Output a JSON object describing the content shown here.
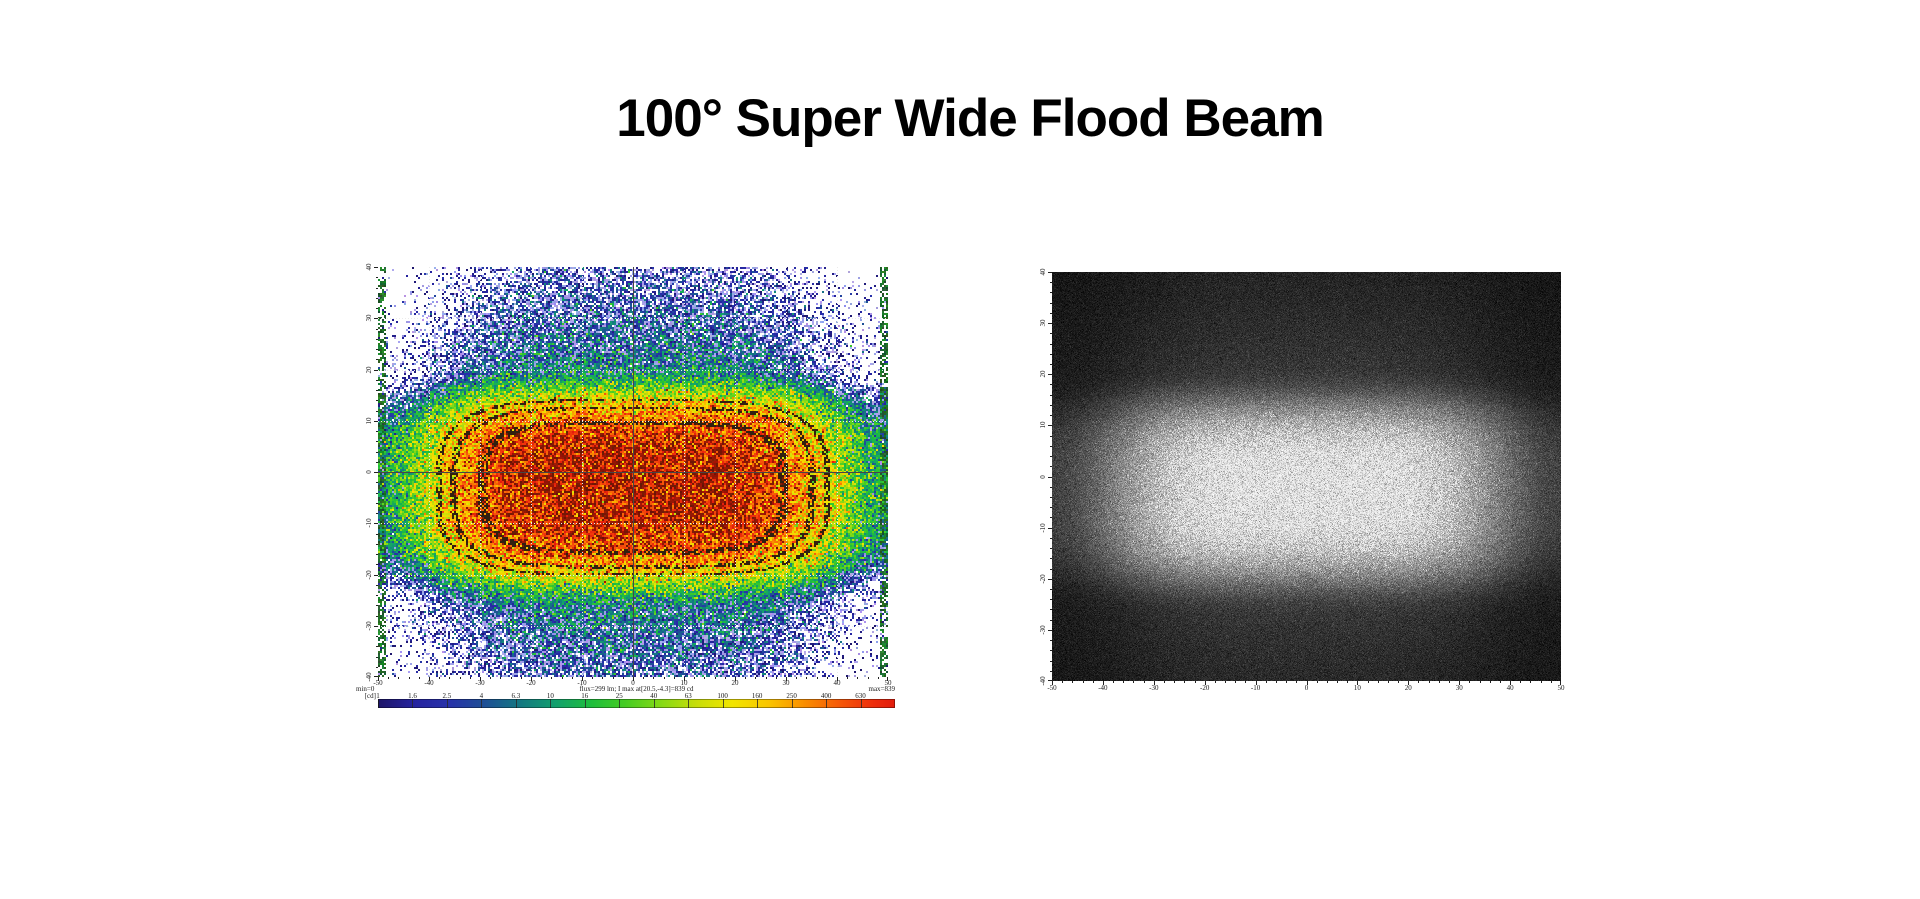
{
  "title": "100° Super Wide Flood Beam",
  "colors": {
    "page_background": "#ffffff",
    "title_color": "#000000",
    "tick_color": "#222222"
  },
  "chart_data": [
    {
      "type": "heatmap",
      "name": "false-color-intensity-map",
      "style": "falsecolor",
      "xlim": [
        -50,
        50
      ],
      "ylim": [
        -40,
        40
      ],
      "x_ticks": [
        "-50",
        "-40",
        "-30",
        "-20",
        "-10",
        "0",
        "10",
        "20",
        "30",
        "40",
        "50"
      ],
      "y_ticks": [
        "40",
        "30",
        "20",
        "10",
        "0",
        "-10",
        "-20",
        "-30",
        "-40"
      ],
      "grid": {
        "major_step_deg": 10,
        "minor_tick_step_deg": 2,
        "crosshair_at": [
          0,
          0
        ]
      },
      "annotation": "flux=299 lm; I max at[20.5,-4.3]=839 cd",
      "flux_lm": 299,
      "peak_cd": 839,
      "peak_location_deg": [
        20.5,
        -4.3
      ],
      "colorbar": {
        "units_label": "[cd]",
        "min_label": "min=0",
        "max_label": "max=839",
        "tick_labels": [
          "1",
          "1.6",
          "2.5",
          "4",
          "6.3",
          "10",
          "16",
          "25",
          "40",
          "63",
          "100",
          "160",
          "250",
          "400",
          "630"
        ],
        "tick_values_cd": [
          1,
          1.6,
          2.5,
          4,
          6.3,
          10,
          16,
          25,
          40,
          63,
          100,
          160,
          250,
          400,
          630
        ],
        "scale": "log",
        "range_cd": [
          1,
          839
        ]
      },
      "palette_stops": [
        {
          "cd": 1,
          "rgb": [
            30,
            22,
            105
          ]
        },
        {
          "cd": 1.6,
          "rgb": [
            38,
            36,
            160
          ]
        },
        {
          "cd": 2.5,
          "rgb": [
            40,
            50,
            170
          ]
        },
        {
          "cd": 4,
          "rgb": [
            30,
            80,
            150
          ]
        },
        {
          "cd": 6.3,
          "rgb": [
            20,
            120,
            130
          ]
        },
        {
          "cd": 10,
          "rgb": [
            18,
            160,
            110
          ]
        },
        {
          "cd": 16,
          "rgb": [
            30,
            190,
            60
          ]
        },
        {
          "cd": 25,
          "rgb": [
            70,
            205,
            35
          ]
        },
        {
          "cd": 40,
          "rgb": [
            135,
            218,
            22
          ]
        },
        {
          "cd": 63,
          "rgb": [
            200,
            222,
            10
          ]
        },
        {
          "cd": 100,
          "rgb": [
            242,
            230,
            0
          ]
        },
        {
          "cd": 160,
          "rgb": [
            250,
            198,
            0
          ]
        },
        {
          "cd": 250,
          "rgb": [
            250,
            145,
            0
          ]
        },
        {
          "cd": 400,
          "rgb": [
            246,
            90,
            8
          ]
        },
        {
          "cd": 630,
          "rgb": [
            238,
            45,
            12
          ]
        },
        {
          "cd": 839,
          "rgb": [
            225,
            28,
            12
          ]
        }
      ],
      "noise_sigma_ln": 0.85,
      "contour_levels_cd": [
        100,
        180,
        400
      ]
    },
    {
      "type": "heatmap",
      "name": "grayscale-intensity-map",
      "style": "grayscale",
      "xlim": [
        -50,
        50
      ],
      "ylim": [
        -40,
        40
      ],
      "x_ticks": [
        "-50",
        "-40",
        "-30",
        "-20",
        "-10",
        "0",
        "10",
        "20",
        "30",
        "40",
        "50"
      ],
      "y_ticks": [
        "40",
        "30",
        "20",
        "10",
        "0",
        "-10",
        "-20",
        "-30",
        "-40"
      ],
      "minor_tick_step_deg": 2,
      "gray_mapping": {
        "scale": 235,
        "exponent": 0.28,
        "cap_cd": 1000
      },
      "noise_sigma_ln": 0.55
    }
  ],
  "beam_model": {
    "peak_cd": 839,
    "h_scale_deg": 31,
    "h_exponent": 4,
    "h_tail_amp": 0.022,
    "h_tail_start_deg": 30,
    "h_tail_decay_deg": 25,
    "v_center_deg": -3,
    "v_scale_deg": 13.5,
    "v_exponent": 3.5,
    "v_tail_amp": 0.01,
    "v_tail_start_deg": 16,
    "v_tail_decay_deg": 11,
    "hotspot_offset_deg": 20,
    "hotspot_gain": 0.12,
    "hotspot_sigma_x_deg": 6,
    "hotspot_sigma_y_deg": 7,
    "floor_amp": 1.4,
    "floor_radius_deg": 50
  }
}
